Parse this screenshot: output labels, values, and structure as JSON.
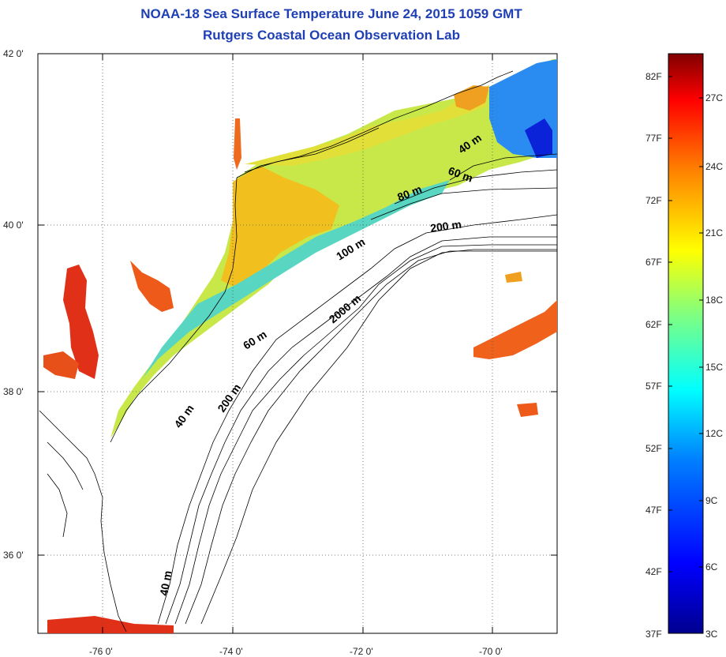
{
  "title_line1": "NOAA-18 Sea Surface Temperature June 24, 2015 1059 GMT",
  "title_line2": "Rutgers Coastal Ocean Observation Lab",
  "y_axis_labels": [
    {
      "text": "42 0'",
      "lat": 42
    },
    {
      "text": "40 0'",
      "lat": 40
    },
    {
      "text": "38 0'",
      "lat": 38
    },
    {
      "text": "36 0'",
      "lat": 36
    }
  ],
  "x_axis_labels": [
    {
      "text": "-76 0'",
      "lon": -76
    },
    {
      "text": "-74 0'",
      "lon": -74
    },
    {
      "text": "-72 0'",
      "lon": -72
    },
    {
      "text": "-70 0'",
      "lon": -70
    }
  ],
  "contour_labels": [
    {
      "text": "40 m"
    },
    {
      "text": "60 m"
    },
    {
      "text": "80 m"
    },
    {
      "text": "200 m"
    },
    {
      "text": "100 m"
    },
    {
      "text": "2000 m"
    },
    {
      "text": "60 m"
    },
    {
      "text": "200 m"
    },
    {
      "text": "40 m"
    },
    {
      "text": "40 m"
    }
  ],
  "colorbar": {
    "fahrenheit": [
      "82F",
      "77F",
      "72F",
      "67F",
      "62F",
      "57F",
      "52F",
      "47F",
      "42F",
      "37F"
    ],
    "celsius": [
      "27C",
      "24C",
      "21C",
      "18C",
      "15C",
      "12C",
      "9C",
      "6C",
      "3C"
    ],
    "colors": [
      "#00008f",
      "#0000ff",
      "#0080ff",
      "#00ffff",
      "#80ff80",
      "#ffff00",
      "#ff8000",
      "#ff0000",
      "#800000"
    ]
  },
  "land_color": "#ffffff",
  "colors": {
    "title": "#1f3fb4",
    "frame": "#000000",
    "grid": "#555555"
  }
}
